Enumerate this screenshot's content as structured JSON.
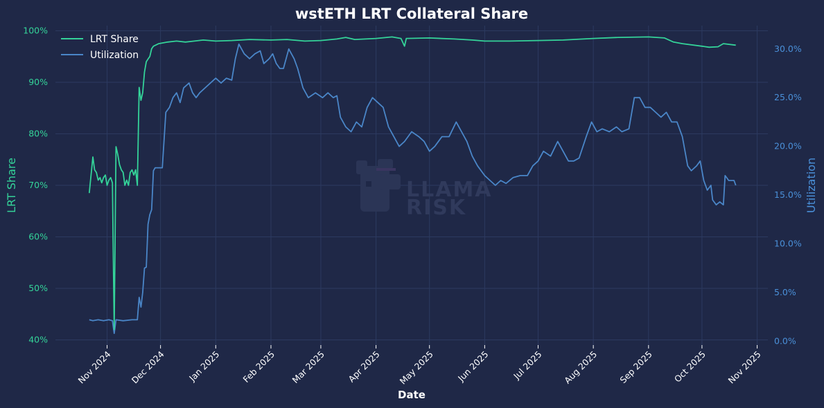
{
  "chart_data": {
    "type": "line",
    "title": "wstETH LRT Collateral Share",
    "xlabel": "Date",
    "ylabel_left": "LRT Share",
    "ylabel_right": "Utilization",
    "x_ticks": [
      "Nov 2024",
      "Dec 2024",
      "Jan 2025",
      "Feb 2025",
      "Mar 2025",
      "Apr 2025",
      "May 2025",
      "Jun 2025",
      "Jul 2025",
      "Aug 2025",
      "Sep 2025",
      "Oct 2025",
      "Nov 2025"
    ],
    "x_tick_dates": [
      "2024-11-01",
      "2024-12-01",
      "2025-01-01",
      "2025-02-01",
      "2025-03-01",
      "2025-04-01",
      "2025-05-01",
      "2025-06-01",
      "2025-07-01",
      "2025-08-01",
      "2025-09-01",
      "2025-10-01",
      "2025-11-01"
    ],
    "y_left_ticks": [
      "40%",
      "50%",
      "60%",
      "70%",
      "80%",
      "90%",
      "100%"
    ],
    "y_left_values": [
      40,
      50,
      60,
      70,
      80,
      90,
      100
    ],
    "y_right_ticks": [
      "0.0%",
      "5.0%",
      "10.0%",
      "15.0%",
      "20.0%",
      "25.0%",
      "30.0%"
    ],
    "y_right_values": [
      0,
      5,
      10,
      15,
      20,
      25,
      30
    ],
    "ylim_left": [
      39,
      101
    ],
    "ylim_right": [
      -0.4,
      32.4
    ],
    "xlim": [
      "2024-10-03",
      "2025-11-07"
    ],
    "grid": true,
    "legend_position": "top-left",
    "series": [
      {
        "name": "LRT Share",
        "axis": "left",
        "color": "#34d399",
        "points": [
          [
            "2024-10-22",
            68.5
          ],
          [
            "2024-10-23",
            72
          ],
          [
            "2024-10-24",
            75.5
          ],
          [
            "2024-10-25",
            73
          ],
          [
            "2024-10-26",
            72.5
          ],
          [
            "2024-10-27",
            71
          ],
          [
            "2024-10-28",
            71.5
          ],
          [
            "2024-10-29",
            70.5
          ],
          [
            "2024-10-30",
            71.5
          ],
          [
            "2024-10-31",
            72
          ],
          [
            "2024-11-01",
            70
          ],
          [
            "2024-11-02",
            71
          ],
          [
            "2024-11-03",
            71.5
          ],
          [
            "2024-11-04",
            70.5
          ],
          [
            "2024-11-05",
            42
          ],
          [
            "2024-11-06",
            77.5
          ],
          [
            "2024-11-07",
            76
          ],
          [
            "2024-11-08",
            74
          ],
          [
            "2024-11-09",
            73
          ],
          [
            "2024-11-10",
            72.5
          ],
          [
            "2024-11-11",
            70
          ],
          [
            "2024-11-12",
            71
          ],
          [
            "2024-11-13",
            70
          ],
          [
            "2024-11-14",
            72.5
          ],
          [
            "2024-11-15",
            73
          ],
          [
            "2024-11-16",
            72
          ],
          [
            "2024-11-17",
            73
          ],
          [
            "2024-11-18",
            70
          ],
          [
            "2024-11-19",
            89
          ],
          [
            "2024-11-20",
            86.5
          ],
          [
            "2024-11-21",
            88
          ],
          [
            "2024-11-22",
            92
          ],
          [
            "2024-11-23",
            94
          ],
          [
            "2024-11-24",
            94.5
          ],
          [
            "2024-11-25",
            95
          ],
          [
            "2024-11-26",
            96.5
          ],
          [
            "2024-11-27",
            97
          ],
          [
            "2024-11-30",
            97.5
          ],
          [
            "2024-12-05",
            97.8
          ],
          [
            "2024-12-10",
            98
          ],
          [
            "2024-12-15",
            97.8
          ],
          [
            "2024-12-20",
            98
          ],
          [
            "2024-12-25",
            98.2
          ],
          [
            "2025-01-01",
            98
          ],
          [
            "2025-01-10",
            98.1
          ],
          [
            "2025-01-20",
            98.3
          ],
          [
            "2025-02-01",
            98.2
          ],
          [
            "2025-02-10",
            98.3
          ],
          [
            "2025-02-20",
            98
          ],
          [
            "2025-03-01",
            98.1
          ],
          [
            "2025-03-10",
            98.4
          ],
          [
            "2025-03-15",
            98.7
          ],
          [
            "2025-03-20",
            98.3
          ],
          [
            "2025-04-01",
            98.5
          ],
          [
            "2025-04-10",
            98.8
          ],
          [
            "2025-04-15",
            98.5
          ],
          [
            "2025-04-17",
            97
          ],
          [
            "2025-04-18",
            98.5
          ],
          [
            "2025-05-01",
            98.6
          ],
          [
            "2025-05-15",
            98.4
          ],
          [
            "2025-05-25",
            98.2
          ],
          [
            "2025-06-01",
            98
          ],
          [
            "2025-06-15",
            98
          ],
          [
            "2025-07-01",
            98.1
          ],
          [
            "2025-07-15",
            98.2
          ],
          [
            "2025-08-01",
            98.5
          ],
          [
            "2025-08-15",
            98.7
          ],
          [
            "2025-09-01",
            98.8
          ],
          [
            "2025-09-10",
            98.6
          ],
          [
            "2025-09-15",
            97.8
          ],
          [
            "2025-09-20",
            97.5
          ],
          [
            "2025-10-01",
            97
          ],
          [
            "2025-10-05",
            96.8
          ],
          [
            "2025-10-10",
            96.9
          ],
          [
            "2025-10-13",
            97.5
          ],
          [
            "2025-10-20",
            97.2
          ]
        ]
      },
      {
        "name": "Utilization",
        "axis": "right",
        "color": "#4a86c8",
        "points": [
          [
            "2024-10-22",
            2.2
          ],
          [
            "2024-10-24",
            2.1
          ],
          [
            "2024-10-27",
            2.2
          ],
          [
            "2024-10-30",
            2.1
          ],
          [
            "2024-11-02",
            2.2
          ],
          [
            "2024-11-04",
            2.1
          ],
          [
            "2024-11-05",
            0.8
          ],
          [
            "2024-11-06",
            2.2
          ],
          [
            "2024-11-10",
            2.1
          ],
          [
            "2024-11-15",
            2.2
          ],
          [
            "2024-11-18",
            2.2
          ],
          [
            "2024-11-19",
            4.5
          ],
          [
            "2024-11-20",
            3.5
          ],
          [
            "2024-11-21",
            5
          ],
          [
            "2024-11-22",
            7.5
          ],
          [
            "2024-11-23",
            7.6
          ],
          [
            "2024-11-24",
            12
          ],
          [
            "2024-11-25",
            13
          ],
          [
            "2024-11-26",
            13.5
          ],
          [
            "2024-11-27",
            17.5
          ],
          [
            "2024-11-28",
            17.8
          ],
          [
            "2024-11-30",
            17.8
          ],
          [
            "2024-12-02",
            17.8
          ],
          [
            "2024-12-04",
            23.5
          ],
          [
            "2024-12-06",
            24
          ],
          [
            "2024-12-08",
            25
          ],
          [
            "2024-12-10",
            25.5
          ],
          [
            "2024-12-12",
            24.5
          ],
          [
            "2024-12-14",
            26
          ],
          [
            "2024-12-17",
            26.5
          ],
          [
            "2024-12-19",
            25.5
          ],
          [
            "2024-12-21",
            25
          ],
          [
            "2024-12-23",
            25.5
          ],
          [
            "2024-12-26",
            26
          ],
          [
            "2024-12-29",
            26.5
          ],
          [
            "2025-01-01",
            27
          ],
          [
            "2025-01-04",
            26.5
          ],
          [
            "2025-01-07",
            27
          ],
          [
            "2025-01-10",
            26.8
          ],
          [
            "2025-01-12",
            29
          ],
          [
            "2025-01-14",
            30.5
          ],
          [
            "2025-01-17",
            29.5
          ],
          [
            "2025-01-20",
            29
          ],
          [
            "2025-01-23",
            29.5
          ],
          [
            "2025-01-26",
            29.8
          ],
          [
            "2025-01-28",
            28.5
          ],
          [
            "2025-01-31",
            29
          ],
          [
            "2025-02-02",
            29.5
          ],
          [
            "2025-02-04",
            28.5
          ],
          [
            "2025-02-06",
            28
          ],
          [
            "2025-02-08",
            28
          ],
          [
            "2025-02-11",
            30
          ],
          [
            "2025-02-14",
            29
          ],
          [
            "2025-02-16",
            28
          ],
          [
            "2025-02-19",
            26
          ],
          [
            "2025-02-22",
            25
          ],
          [
            "2025-02-26",
            25.5
          ],
          [
            "2025-03-02",
            25
          ],
          [
            "2025-03-05",
            25.5
          ],
          [
            "2025-03-08",
            25
          ],
          [
            "2025-03-10",
            25.2
          ],
          [
            "2025-03-12",
            23
          ],
          [
            "2025-03-15",
            22
          ],
          [
            "2025-03-18",
            21.5
          ],
          [
            "2025-03-21",
            22.5
          ],
          [
            "2025-03-24",
            22
          ],
          [
            "2025-03-27",
            24
          ],
          [
            "2025-03-30",
            25
          ],
          [
            "2025-04-02",
            24.5
          ],
          [
            "2025-04-05",
            24
          ],
          [
            "2025-04-08",
            22
          ],
          [
            "2025-04-11",
            21
          ],
          [
            "2025-04-14",
            20
          ],
          [
            "2025-04-17",
            20.5
          ],
          [
            "2025-04-21",
            21.5
          ],
          [
            "2025-04-25",
            21
          ],
          [
            "2025-04-28",
            20.5
          ],
          [
            "2025-05-01",
            19.5
          ],
          [
            "2025-05-04",
            20
          ],
          [
            "2025-05-08",
            21
          ],
          [
            "2025-05-12",
            21
          ],
          [
            "2025-05-16",
            22.5
          ],
          [
            "2025-05-19",
            21.5
          ],
          [
            "2025-05-22",
            20.5
          ],
          [
            "2025-05-25",
            19
          ],
          [
            "2025-05-28",
            18
          ],
          [
            "2025-06-01",
            17
          ],
          [
            "2025-06-04",
            16.5
          ],
          [
            "2025-06-07",
            16
          ],
          [
            "2025-06-10",
            16.5
          ],
          [
            "2025-06-13",
            16.2
          ],
          [
            "2025-06-17",
            16.8
          ],
          [
            "2025-06-21",
            17
          ],
          [
            "2025-06-25",
            17
          ],
          [
            "2025-06-28",
            18
          ],
          [
            "2025-07-01",
            18.5
          ],
          [
            "2025-07-04",
            19.5
          ],
          [
            "2025-07-08",
            19
          ],
          [
            "2025-07-12",
            20.5
          ],
          [
            "2025-07-15",
            19.5
          ],
          [
            "2025-07-18",
            18.5
          ],
          [
            "2025-07-21",
            18.5
          ],
          [
            "2025-07-24",
            18.8
          ],
          [
            "2025-07-28",
            21
          ],
          [
            "2025-07-31",
            22.5
          ],
          [
            "2025-08-03",
            21.5
          ],
          [
            "2025-08-06",
            21.8
          ],
          [
            "2025-08-10",
            21.5
          ],
          [
            "2025-08-14",
            22
          ],
          [
            "2025-08-17",
            21.5
          ],
          [
            "2025-08-21",
            21.8
          ],
          [
            "2025-08-24",
            25
          ],
          [
            "2025-08-27",
            25
          ],
          [
            "2025-08-30",
            24
          ],
          [
            "2025-09-02",
            24
          ],
          [
            "2025-09-05",
            23.5
          ],
          [
            "2025-09-08",
            23
          ],
          [
            "2025-09-11",
            23.5
          ],
          [
            "2025-09-14",
            22.5
          ],
          [
            "2025-09-17",
            22.5
          ],
          [
            "2025-09-20",
            21
          ],
          [
            "2025-09-23",
            18
          ],
          [
            "2025-09-25",
            17.5
          ],
          [
            "2025-09-28",
            18
          ],
          [
            "2025-09-30",
            18.5
          ],
          [
            "2025-10-02",
            16.5
          ],
          [
            "2025-10-04",
            15.5
          ],
          [
            "2025-10-06",
            16
          ],
          [
            "2025-10-07",
            14.5
          ],
          [
            "2025-10-09",
            14
          ],
          [
            "2025-10-11",
            14.3
          ],
          [
            "2025-10-13",
            14
          ],
          [
            "2025-10-14",
            17
          ],
          [
            "2025-10-16",
            16.5
          ],
          [
            "2025-10-18",
            16.5
          ],
          [
            "2025-10-19",
            16.5
          ],
          [
            "2025-10-20",
            16
          ]
        ]
      }
    ]
  },
  "watermark": {
    "line1": "LLAMA",
    "line2": "RISK",
    "icon": "llama-icon"
  }
}
